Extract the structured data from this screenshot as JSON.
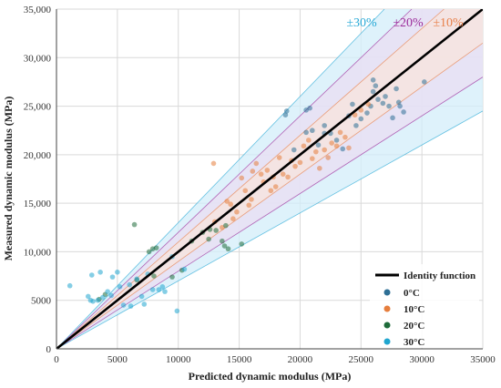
{
  "chart_data": {
    "type": "scatter",
    "xlabel": "Predicted dynamic modulus (MPa)",
    "ylabel": "Measured dynamic modulus (MPa)",
    "xlim": [
      0,
      35000
    ],
    "ylim": [
      0,
      35000
    ],
    "x_ticks": [
      "0",
      "5000",
      "10000",
      "15000",
      "20000",
      "25000",
      "30000",
      "35000"
    ],
    "y_ticks": [
      "0",
      "5000",
      "10,000",
      "15,000",
      "20,000",
      "25,000",
      "30,000",
      "35,000"
    ],
    "grid": true,
    "legend_position": "bottom-right",
    "bands": [
      {
        "label": "±30%",
        "ratio": 0.3,
        "color": "#29a9d6",
        "fill": "#d3eef9"
      },
      {
        "label": "±20%",
        "ratio": 0.2,
        "color": "#9b2a9a",
        "fill": "#e9ddf3"
      },
      {
        "label": "±10%",
        "ratio": 0.1,
        "color": "#e8804a",
        "fill": "#f8e4dc"
      }
    ],
    "identity_line": {
      "name": "Identity function",
      "color": "#000000"
    },
    "series": [
      {
        "name": "0°C",
        "color": "#2e6f95",
        "points": [
          [
            18800,
            24100
          ],
          [
            18900,
            24500
          ],
          [
            20500,
            24600
          ],
          [
            20800,
            24800
          ],
          [
            21000,
            22500
          ],
          [
            21500,
            21000
          ],
          [
            22000,
            23000
          ],
          [
            22500,
            22200
          ],
          [
            23000,
            21500
          ],
          [
            23500,
            20600
          ],
          [
            24000,
            24000
          ],
          [
            24300,
            25200
          ],
          [
            24600,
            23000
          ],
          [
            25000,
            23700
          ],
          [
            25500,
            24300
          ],
          [
            25800,
            25000
          ],
          [
            26000,
            27700
          ],
          [
            26000,
            26500
          ],
          [
            26200,
            27100
          ],
          [
            26400,
            25700
          ],
          [
            26800,
            25300
          ],
          [
            27000,
            26000
          ],
          [
            27300,
            25000
          ],
          [
            27600,
            23800
          ],
          [
            27900,
            26800
          ],
          [
            28100,
            25400
          ],
          [
            28200,
            25000
          ],
          [
            28500,
            24400
          ],
          [
            30200,
            27500
          ],
          [
            22000,
            22200
          ],
          [
            19500,
            20500
          ],
          [
            20500,
            22300
          ]
        ]
      },
      {
        "name": "10°C",
        "color": "#e67e3d",
        "points": [
          [
            12900,
            19100
          ],
          [
            13000,
            13100
          ],
          [
            13600,
            12500
          ],
          [
            14000,
            15200
          ],
          [
            14300,
            14900
          ],
          [
            14800,
            14100
          ],
          [
            15200,
            17600
          ],
          [
            15500,
            16300
          ],
          [
            15800,
            14800
          ],
          [
            16000,
            15400
          ],
          [
            16400,
            19100
          ],
          [
            16800,
            18000
          ],
          [
            17000,
            17200
          ],
          [
            17300,
            18400
          ],
          [
            17600,
            16300
          ],
          [
            17800,
            17700
          ],
          [
            18000,
            16700
          ],
          [
            18300,
            19700
          ],
          [
            18600,
            18000
          ],
          [
            19000,
            17700
          ],
          [
            19300,
            19400
          ],
          [
            19600,
            18800
          ],
          [
            20000,
            19200
          ],
          [
            20300,
            20900
          ],
          [
            20700,
            21500
          ],
          [
            21000,
            19600
          ],
          [
            21300,
            20300
          ],
          [
            21600,
            18600
          ],
          [
            22000,
            20500
          ],
          [
            22300,
            19700
          ],
          [
            22600,
            21200
          ],
          [
            23000,
            20900
          ],
          [
            23300,
            22300
          ],
          [
            23700,
            21800
          ],
          [
            24000,
            20700
          ],
          [
            24500,
            24100
          ],
          [
            25000,
            24600
          ],
          [
            25600,
            25200
          ],
          [
            14500,
            13400
          ],
          [
            16100,
            18300
          ]
        ]
      },
      {
        "name": "20°C",
        "color": "#1f6b3a",
        "points": [
          [
            6400,
            12800
          ],
          [
            7600,
            10000
          ],
          [
            7900,
            10300
          ],
          [
            8200,
            10400
          ],
          [
            10300,
            8100
          ],
          [
            12500,
            11300
          ],
          [
            13600,
            11100
          ],
          [
            13800,
            10600
          ],
          [
            14100,
            10300
          ],
          [
            15200,
            10800
          ],
          [
            3500,
            5100
          ],
          [
            4000,
            5600
          ],
          [
            6600,
            7100
          ],
          [
            8000,
            7500
          ],
          [
            9500,
            7400
          ],
          [
            11100,
            11100
          ],
          [
            12000,
            12000
          ],
          [
            12600,
            12300
          ],
          [
            13100,
            12200
          ],
          [
            13900,
            12700
          ]
        ]
      },
      {
        "name": "30°C",
        "color": "#20a6cf",
        "points": [
          [
            1100,
            6500
          ],
          [
            2600,
            5400
          ],
          [
            2800,
            5000
          ],
          [
            2900,
            7600
          ],
          [
            3400,
            5000
          ],
          [
            3600,
            7900
          ],
          [
            3800,
            5300
          ],
          [
            4200,
            5900
          ],
          [
            4500,
            5500
          ],
          [
            4600,
            7400
          ],
          [
            5000,
            7900
          ],
          [
            5200,
            6400
          ],
          [
            5500,
            4500
          ],
          [
            6000,
            6600
          ],
          [
            6100,
            4400
          ],
          [
            6600,
            7200
          ],
          [
            7000,
            5400
          ],
          [
            7200,
            4600
          ],
          [
            7500,
            7700
          ],
          [
            7900,
            6100
          ],
          [
            8400,
            6100
          ],
          [
            8700,
            6400
          ],
          [
            8900,
            5900
          ],
          [
            9500,
            9500
          ],
          [
            9900,
            3900
          ],
          [
            10500,
            8200
          ],
          [
            3000,
            4900
          ]
        ]
      }
    ]
  }
}
